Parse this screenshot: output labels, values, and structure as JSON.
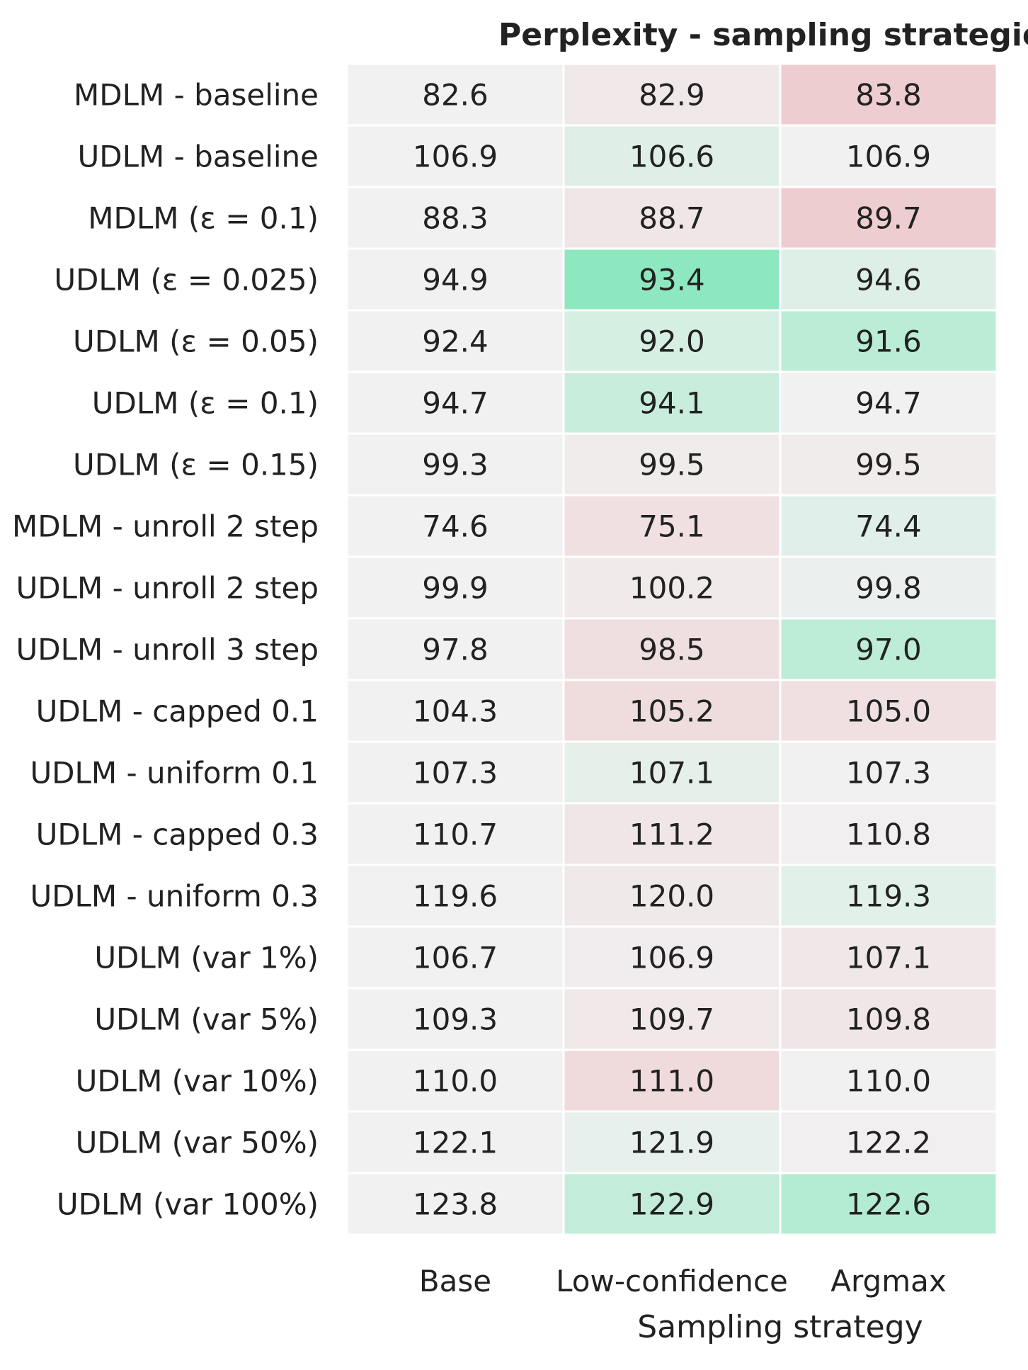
{
  "chart_data": {
    "type": "heatmap",
    "title": "Perplexity - sampling strategies",
    "xlabel": "Sampling strategy",
    "ylabel": "",
    "columns": [
      "Base",
      "Low-confidence",
      "Argmax"
    ],
    "rows": [
      "MDLM - baseline",
      "UDLM - baseline",
      "MDLM (ε = 0.1)",
      "UDLM (ε = 0.025)",
      "UDLM (ε = 0.05)",
      "UDLM (ε = 0.1)",
      "UDLM (ε = 0.15)",
      "MDLM - unroll 2 step",
      "UDLM - unroll 2 step",
      "UDLM - unroll 3 step",
      "UDLM - capped 0.1",
      "UDLM - uniform 0.1",
      "UDLM - capped 0.3",
      "UDLM - uniform 0.3",
      "UDLM (var 1%)",
      "UDLM (var 5%)",
      "UDLM (var 10%)",
      "UDLM (var 50%)",
      "UDLM (var 100%)"
    ],
    "values": [
      [
        "82.6",
        "82.9",
        "83.8"
      ],
      [
        "106.9",
        "106.6",
        "106.9"
      ],
      [
        "88.3",
        "88.7",
        "89.7"
      ],
      [
        "94.9",
        "93.4",
        "94.6"
      ],
      [
        "92.4",
        "92.0",
        "91.6"
      ],
      [
        "94.7",
        "94.1",
        "94.7"
      ],
      [
        "99.3",
        "99.5",
        "99.5"
      ],
      [
        "74.6",
        "75.1",
        "74.4"
      ],
      [
        "99.9",
        "100.2",
        "99.8"
      ],
      [
        "97.8",
        "98.5",
        "97.0"
      ],
      [
        "104.3",
        "105.2",
        "105.0"
      ],
      [
        "107.3",
        "107.1",
        "107.3"
      ],
      [
        "110.7",
        "111.2",
        "110.8"
      ],
      [
        "119.6",
        "120.0",
        "119.3"
      ],
      [
        "106.7",
        "106.9",
        "107.1"
      ],
      [
        "109.3",
        "109.7",
        "109.8"
      ],
      [
        "110.0",
        "111.0",
        "110.0"
      ],
      [
        "122.1",
        "121.9",
        "122.2"
      ],
      [
        "123.8",
        "122.9",
        "122.6"
      ]
    ],
    "color_scale": {
      "neutral": "#f1f1f1",
      "better": "#8ce8bf",
      "worse": "#eecdd0"
    }
  }
}
